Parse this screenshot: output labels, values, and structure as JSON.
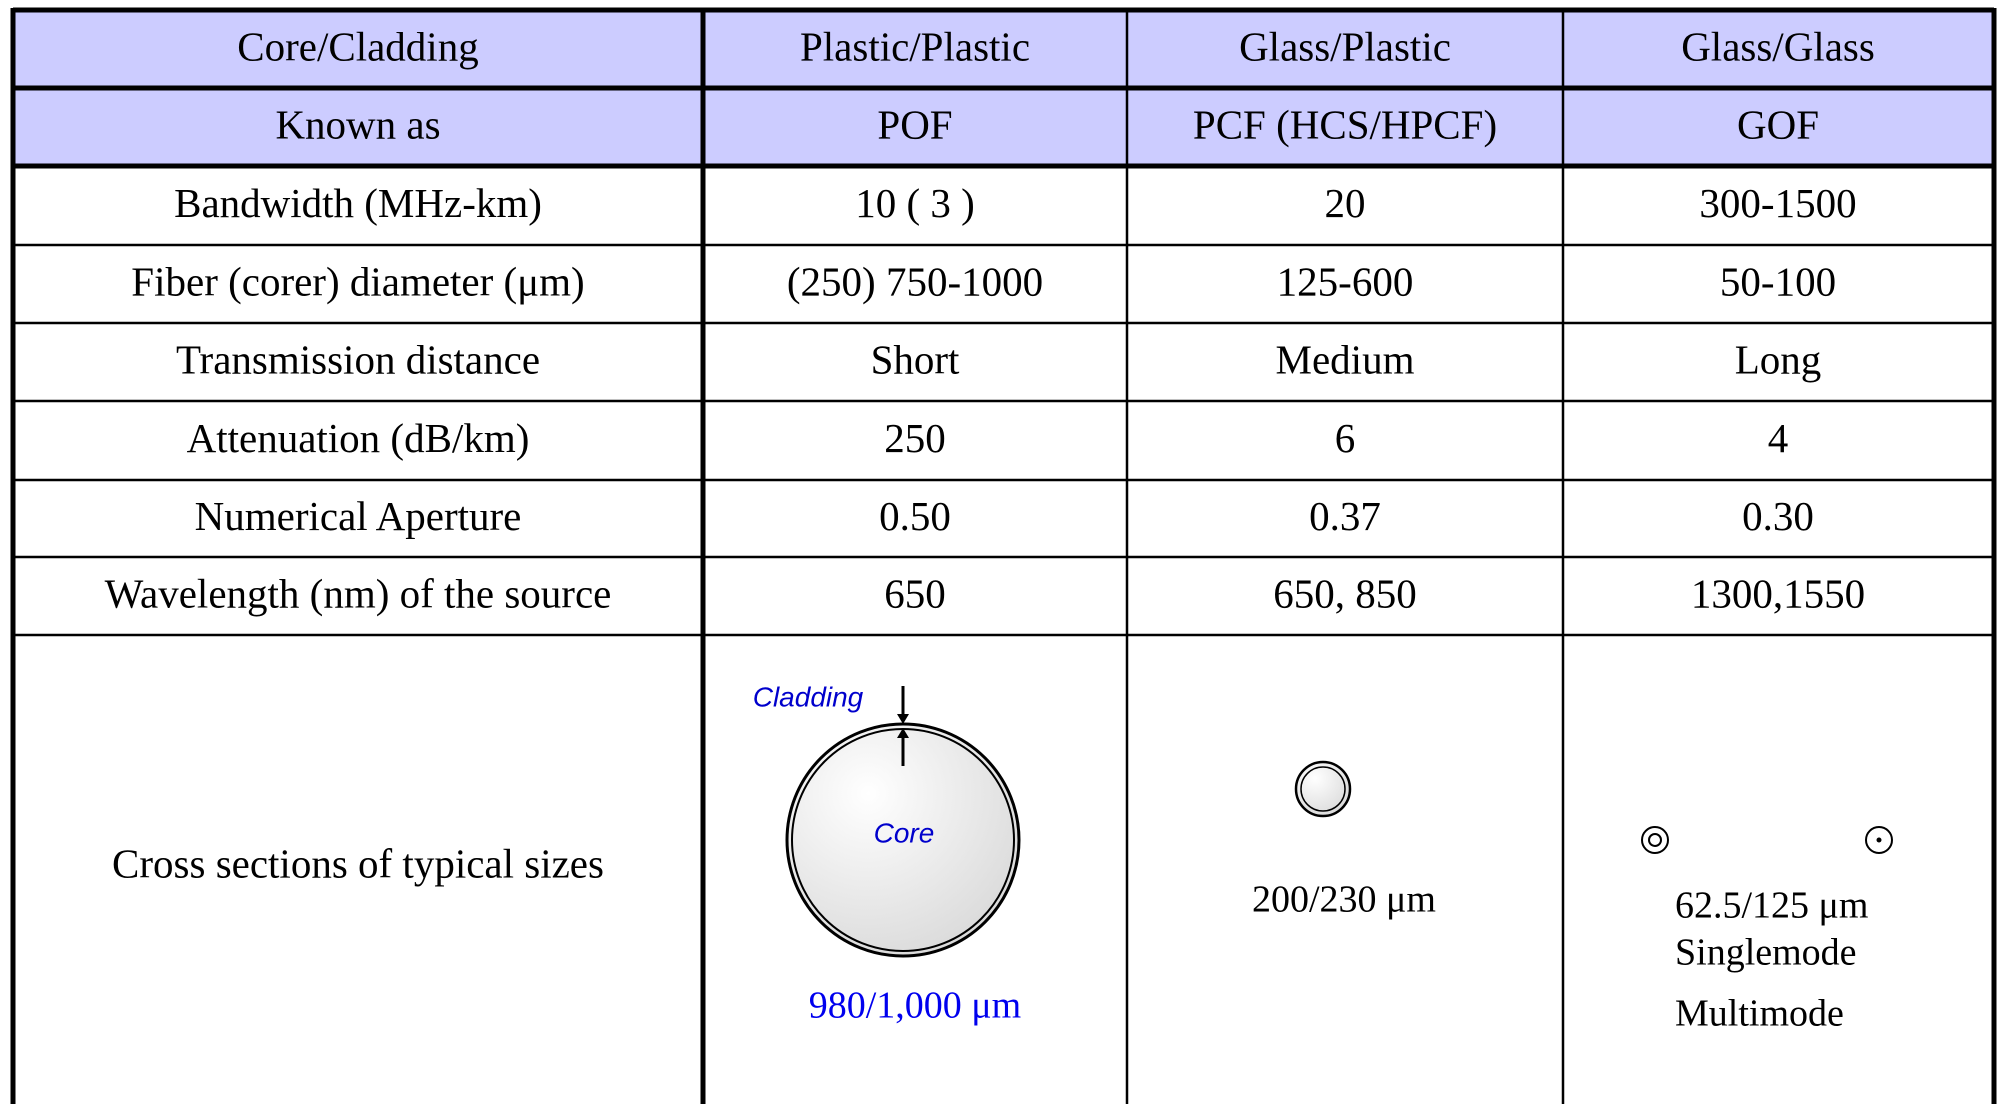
{
  "table": {
    "rows": [
      [
        "Core/Cladding",
        "Plastic/Plastic",
        "Glass/Plastic",
        "Glass/Glass"
      ],
      [
        "Known as",
        "POF",
        "PCF (HCS/HPCF)",
        "GOF"
      ],
      [
        "Bandwidth (MHz-km)",
        "10 ( 3 )",
        "20",
        "300-1500"
      ],
      [
        "Fiber (corer) diameter (μm)",
        "(250) 750-1000",
        "125-600",
        "50-100"
      ],
      [
        "Transmission distance",
        "Short",
        "Medium",
        "Long"
      ],
      [
        "Attenuation (dB/km)",
        "250",
        "6",
        "4"
      ],
      [
        "Numerical Aperture",
        "0.50",
        "0.37",
        "0.30"
      ],
      [
        "Wavelength (nm) of the source",
        "650",
        "650, 850",
        "1300,1550"
      ],
      [
        "Cross sections of typical sizes"
      ]
    ]
  },
  "cross_sections": {
    "pof": {
      "cladding": "Cladding",
      "core": "Core",
      "size": "980/1,000 μm"
    },
    "pcf": {
      "size": "200/230 μm"
    },
    "gof": {
      "size": "62.5/125 μm",
      "singlemode": "Singlemode",
      "multimode": "Multimode"
    }
  }
}
